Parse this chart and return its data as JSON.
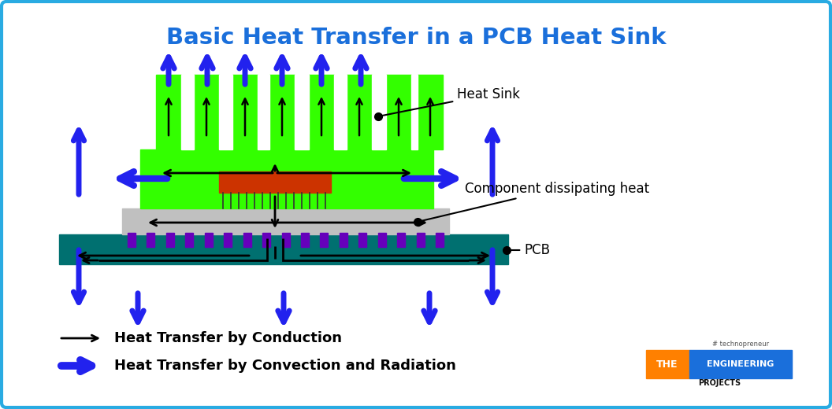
{
  "title": "Basic Heat Transfer in a PCB Heat Sink",
  "title_color": "#1a6fdb",
  "bg_color": "#ffffff",
  "border_color": "#29abe2",
  "pcb_color": "#007070",
  "heatsink_color": "#33ff00",
  "component_color": "#cc3300",
  "thermal_pad_color": "#c0c0c0",
  "purple_color": "#6600bb",
  "blue_arrow_color": "#2222ee",
  "black_arrow_color": "#000000",
  "legend_conduction_text": "Heat Transfer by Conduction",
  "legend_convection_text": "Heat Transfer by Convection and Radiation",
  "label_heatsink": "Heat Sink",
  "label_component": "Component dissipating heat",
  "label_pcb": "PCB",
  "fig_w": 10.56,
  "fig_h": 5.2
}
